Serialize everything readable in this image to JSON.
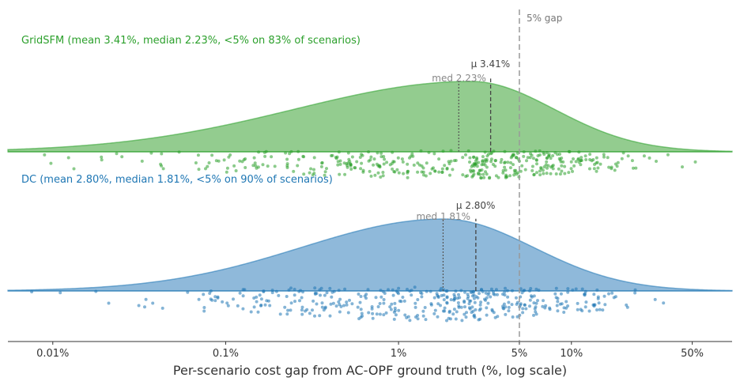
{
  "chart_data": {
    "type": "raincloud",
    "xscale": "log",
    "xlim": [
      0.0055,
      85
    ],
    "xlabel": "Per-scenario cost gap from AC-OPF ground truth (%, log scale)",
    "xticks": [
      {
        "value": 0.01,
        "label": "0.01%"
      },
      {
        "value": 0.1,
        "label": "0.1%"
      },
      {
        "value": 1,
        "label": "1%"
      },
      {
        "value": 5,
        "label": "5%"
      },
      {
        "value": 10,
        "label": "10%"
      },
      {
        "value": 50,
        "label": "50%"
      }
    ],
    "reference_line": {
      "value": 5,
      "label": "5% gap"
    },
    "series": [
      {
        "name": "GridSFM",
        "title": "GridSFM (mean 3.41%, median 2.23%, <5% on 83% of scenarios)",
        "mean": 3.41,
        "median": 2.23,
        "pct_below_5": 83,
        "mean_label": "μ 3.41%",
        "median_label": "med 2.23%",
        "color": "#2ca02c",
        "fill": "#93cc8f",
        "log_mode": 0.42,
        "sigma_left": 1.02,
        "sigma_right": 0.48
      },
      {
        "name": "DC",
        "title": "DC (mean 2.80%, median 1.81%, <5% on 90% of scenarios)",
        "mean": 2.8,
        "median": 1.81,
        "pct_below_5": 90,
        "mean_label": "μ 2.80%",
        "median_label": "med 1.81%",
        "color": "#1f77b4",
        "fill": "#8fb9da",
        "log_mode": 0.26,
        "sigma_left": 0.82,
        "sigma_right": 0.52
      }
    ]
  }
}
